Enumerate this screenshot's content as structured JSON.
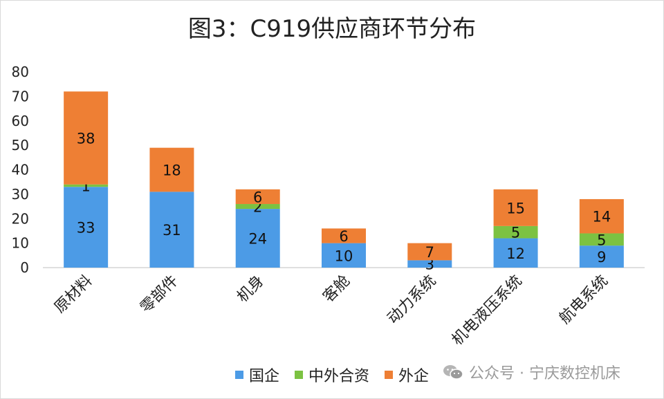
{
  "chart_data": {
    "type": "bar",
    "stacked": true,
    "title": "图3：C919供应商环节分布",
    "categories": [
      "原材料",
      "零部件",
      "机身",
      "客舱",
      "动力系统",
      "机电液压系统",
      "航电系统"
    ],
    "series": [
      {
        "name": "国企",
        "color": "#4C9BE6",
        "values": [
          33,
          31,
          24,
          10,
          3,
          12,
          9
        ]
      },
      {
        "name": "中外合资",
        "color": "#7CC242",
        "values": [
          1,
          0,
          2,
          0,
          0,
          5,
          5
        ]
      },
      {
        "name": "外企",
        "color": "#EE7F34",
        "values": [
          38,
          18,
          6,
          6,
          7,
          15,
          14
        ]
      }
    ],
    "ylim": [
      0,
      80
    ],
    "yticks": [
      0,
      10,
      20,
      30,
      40,
      50,
      60,
      70,
      80
    ],
    "grid": false,
    "legend_position": "bottom"
  },
  "watermark": {
    "text": "公众号 · 宁庆数控机床",
    "icon": "wechat-icon"
  }
}
